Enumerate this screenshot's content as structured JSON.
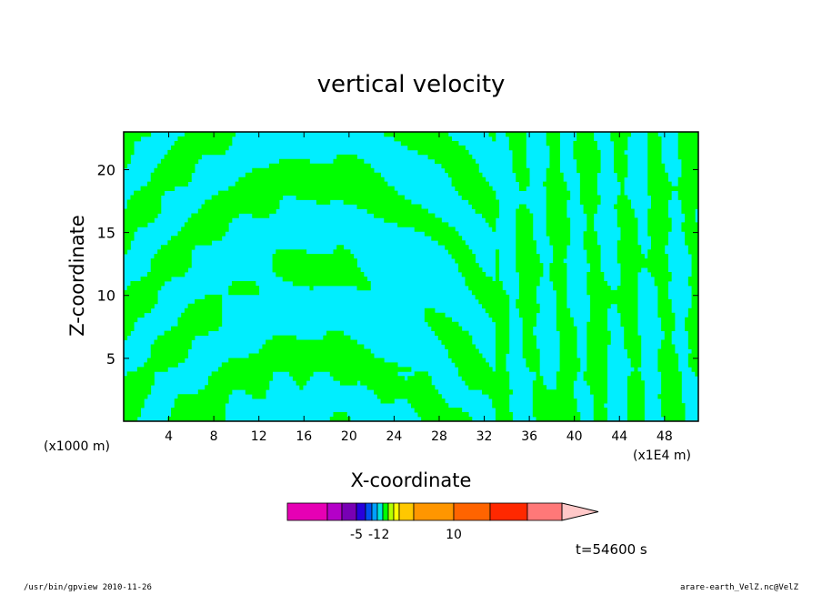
{
  "chart_data": {
    "type": "heatmap",
    "title": "vertical velocity",
    "xlabel": "X-coordinate",
    "ylabel": "Z-coordinate",
    "x_unit_left": "(x1000 m)",
    "x_unit_right": "(x1E4 m)",
    "xlim": [
      0,
      51
    ],
    "ylim": [
      0,
      23
    ],
    "x_ticks": [
      4,
      8,
      12,
      16,
      20,
      24,
      28,
      32,
      36,
      40,
      44,
      48
    ],
    "y_ticks": [
      5,
      10,
      15,
      20
    ],
    "contour_colors": {
      "positive": "#00ff00",
      "negative": "#00eeff",
      "line": "#000000"
    },
    "colorbar": {
      "colors": [
        "#e600b4",
        "#b400c8",
        "#7800b4",
        "#2800dc",
        "#0050f0",
        "#00a0ff",
        "#00e6dc",
        "#00ff00",
        "#b4ff00",
        "#ffff00",
        "#ffc800",
        "#ff9600",
        "#ff6400",
        "#ff2800",
        "#ff7878",
        "#ffc8c8"
      ],
      "tick_labels": [
        {
          "label": "-5",
          "index": 3
        },
        {
          "label": "-1",
          "index": 5.5
        },
        {
          "label": "2",
          "index": 7.5
        },
        {
          "label": "10",
          "index": 12
        }
      ]
    },
    "time_label": "t=54600 s"
  },
  "footer": {
    "left": "/usr/bin/gpview   2010-11-26",
    "right": "arare-earth_VelZ.nc@VelZ"
  }
}
